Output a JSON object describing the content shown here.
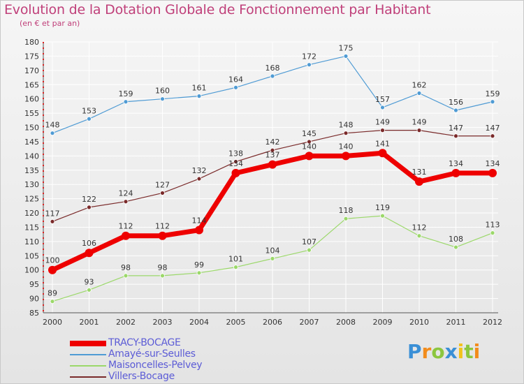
{
  "title": "Evolution de la Dotation Globale de Fonctionnement par Habitant",
  "subtitle": "(en € et par an)",
  "colors": {
    "title": "#c0407a",
    "legend_text": "#5c5cd6",
    "background_top": "#f6f6f6",
    "background_bottom": "#e4e4e4",
    "grid": "#ffffff"
  },
  "chart_data": {
    "type": "line",
    "title": "Evolution de la Dotation Globale de Fonctionnement par Habitant",
    "subtitle": "(en € et par an)",
    "xlabel": "",
    "ylabel": "",
    "ylim": [
      85,
      180
    ],
    "ytick_step": 5,
    "grid": true,
    "legend_position": "bottom-left",
    "categories": [
      "2000",
      "2001",
      "2002",
      "2003",
      "2004",
      "2005",
      "2006",
      "2007",
      "2008",
      "2009",
      "2010",
      "2011",
      "2012"
    ],
    "series": [
      {
        "name": "TRACY-BOCAGE",
        "color": "#ee0000",
        "values": [
          100,
          106,
          112,
          112,
          114,
          134,
          137,
          140,
          140,
          141,
          131,
          134,
          134
        ]
      },
      {
        "name": "Amayé-sur-Seulles",
        "color": "#4f9bd4",
        "values": [
          148,
          153,
          159,
          160,
          161,
          164,
          168,
          172,
          175,
          157,
          162,
          156,
          159
        ]
      },
      {
        "name": "Maisoncelles-Pelvey",
        "color": "#9bd86a",
        "values": [
          89,
          93,
          98,
          98,
          99,
          101,
          104,
          107,
          118,
          119,
          112,
          108,
          113
        ]
      },
      {
        "name": "Villers-Bocage",
        "color": "#7a2a2a",
        "values": [
          117,
          122,
          124,
          127,
          132,
          138,
          142,
          145,
          148,
          149,
          149,
          147,
          147
        ]
      }
    ]
  },
  "brand": {
    "letters": [
      {
        "char": "P",
        "color": "#3a8fd6"
      },
      {
        "char": "r",
        "color": "#f28c1c"
      },
      {
        "char": "o",
        "color": "#8cc63f"
      },
      {
        "char": "x",
        "color": "#3a8fd6"
      },
      {
        "char": "i",
        "color": "#f2c21c"
      },
      {
        "char": "t",
        "color": "#8cc63f"
      },
      {
        "char": "i",
        "color": "#f28c1c"
      }
    ]
  }
}
